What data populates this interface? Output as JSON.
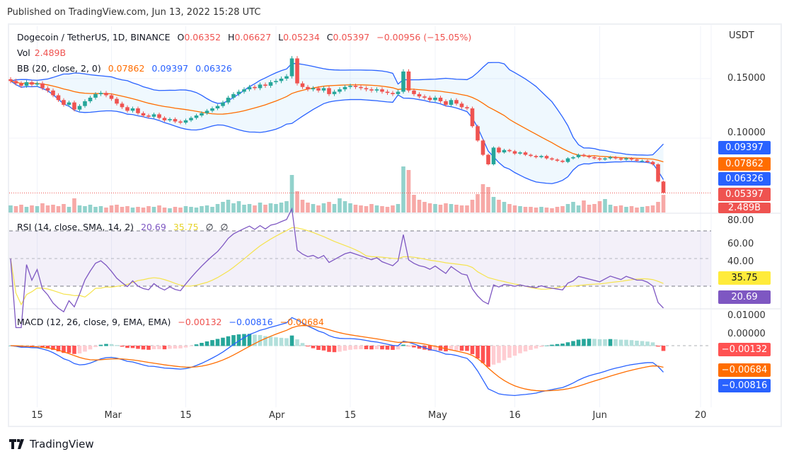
{
  "published": "Published on TradingView.com, Jun 13, 2022 15:28 UTC",
  "logo_text": "TradingView",
  "chart_data": {
    "type": "candlestick",
    "symbol": "Dogecoin / TetherUS, 1D, BINANCE",
    "ohlc_label": {
      "O": "0.06352",
      "H": "0.06627",
      "L": "0.05234",
      "C": "0.05397",
      "change": "−0.00956 (−15.05%)"
    },
    "currency": "USDT",
    "start_date": "2022-02-10",
    "end_date": "2022-06-13",
    "closes": [
      0.148,
      0.146,
      0.144,
      0.147,
      0.145,
      0.146,
      0.142,
      0.14,
      0.136,
      0.132,
      0.128,
      0.13,
      0.124,
      0.127,
      0.131,
      0.134,
      0.137,
      0.138,
      0.136,
      0.133,
      0.129,
      0.126,
      0.123,
      0.125,
      0.121,
      0.119,
      0.118,
      0.12,
      0.117,
      0.115,
      0.116,
      0.114,
      0.113,
      0.115,
      0.117,
      0.119,
      0.121,
      0.123,
      0.125,
      0.127,
      0.13,
      0.134,
      0.137,
      0.139,
      0.141,
      0.143,
      0.142,
      0.145,
      0.144,
      0.147,
      0.148,
      0.15,
      0.152,
      0.167,
      0.146,
      0.143,
      0.141,
      0.142,
      0.14,
      0.142,
      0.137,
      0.139,
      0.141,
      0.143,
      0.144,
      0.143,
      0.142,
      0.141,
      0.14,
      0.141,
      0.139,
      0.138,
      0.137,
      0.139,
      0.156,
      0.14,
      0.137,
      0.135,
      0.134,
      0.132,
      0.134,
      0.131,
      0.128,
      0.132,
      0.129,
      0.126,
      0.125,
      0.11,
      0.098,
      0.086,
      0.078,
      0.092,
      0.088,
      0.09,
      0.089,
      0.087,
      0.088,
      0.086,
      0.085,
      0.084,
      0.085,
      0.083,
      0.082,
      0.081,
      0.08,
      0.083,
      0.084,
      0.086,
      0.085,
      0.084,
      0.083,
      0.082,
      0.083,
      0.084,
      0.083,
      0.082,
      0.083,
      0.082,
      0.081,
      0.081,
      0.08,
      0.078,
      0.06352,
      0.05397
    ],
    "volumes_B": [
      1.0,
      0.9,
      1.1,
      0.8,
      1.0,
      0.9,
      1.3,
      1.0,
      1.1,
      0.9,
      1.2,
      0.8,
      2.0,
      1.0,
      0.9,
      1.1,
      0.8,
      0.9,
      0.7,
      1.0,
      1.1,
      0.8,
      0.9,
      0.7,
      0.8,
      0.7,
      0.9,
      0.8,
      1.0,
      0.7,
      0.6,
      0.8,
      0.7,
      0.9,
      0.8,
      0.7,
      0.9,
      1.0,
      0.8,
      1.2,
      1.5,
      1.8,
      1.3,
      1.6,
      1.1,
      1.2,
      1.0,
      1.4,
      1.1,
      1.3,
      1.2,
      1.4,
      1.6,
      5.3,
      3.0,
      1.8,
      1.4,
      1.2,
      1.0,
      1.3,
      1.5,
      1.2,
      2.0,
      1.6,
      1.3,
      1.1,
      1.0,
      0.9,
      1.2,
      1.0,
      0.9,
      0.8,
      1.0,
      1.2,
      6.5,
      6.0,
      2.5,
      1.8,
      1.5,
      1.3,
      1.2,
      1.1,
      1.3,
      1.2,
      1.1,
      1.0,
      1.0,
      1.8,
      2.6,
      4.0,
      3.6,
      2.2,
      1.8,
      1.5,
      1.2,
      1.0,
      0.9,
      0.8,
      0.8,
      0.7,
      0.8,
      0.7,
      0.6,
      0.8,
      0.9,
      1.2,
      1.5,
      1.0,
      1.7,
      1.1,
      1.2,
      1.6,
      1.9,
      1.1,
      0.9,
      1.0,
      0.8,
      0.9,
      0.7,
      0.8,
      0.9,
      1.0,
      1.5,
      2.489
    ],
    "price_ticks": [
      "0.15000",
      "0.10000"
    ],
    "rsi_ticks": [
      "80.00",
      "60.00",
      "40.00"
    ],
    "macd_ticks": [
      "0.01000",
      "0.00000"
    ],
    "x_ticks": [
      {
        "label": "15",
        "date": "2022-02-15"
      },
      {
        "label": "Mar",
        "date": "2022-03-01"
      },
      {
        "label": "15",
        "date": "2022-03-15"
      },
      {
        "label": "Apr",
        "date": "2022-04-01"
      },
      {
        "label": "15",
        "date": "2022-04-15"
      },
      {
        "label": "May",
        "date": "2022-05-01"
      },
      {
        "label": "16",
        "date": "2022-05-16"
      },
      {
        "label": "Jun",
        "date": "2022-06-01"
      },
      {
        "label": "20",
        "date": "2022-06-20"
      }
    ],
    "vol": {
      "label": "Vol",
      "value": "2.489B"
    },
    "bb": {
      "label": "BB (20, close, 2, 0)",
      "basis": "0.07862",
      "upper": "0.09397",
      "lower": "0.06326"
    },
    "rsi": {
      "label": "RSI (14, close, SMA, 14, 2)",
      "value": "20.69",
      "sma": "35.75",
      "extra1": "∅",
      "extra2": "∅"
    },
    "macd": {
      "label": "MACD (12, 26, close, 9, EMA, EMA)",
      "hist": "−0.00132",
      "macd": "−0.00816",
      "signal": "−0.00684"
    },
    "colors": {
      "up": "#26a69a",
      "down": "#ef5350",
      "bb_basis": "#ff6d00",
      "bb_band": "#2962ff",
      "rsi": "#7e57c2",
      "rsi_sma": "#f5e34d",
      "macd": "#2962ff",
      "signal": "#ff6d00"
    }
  }
}
